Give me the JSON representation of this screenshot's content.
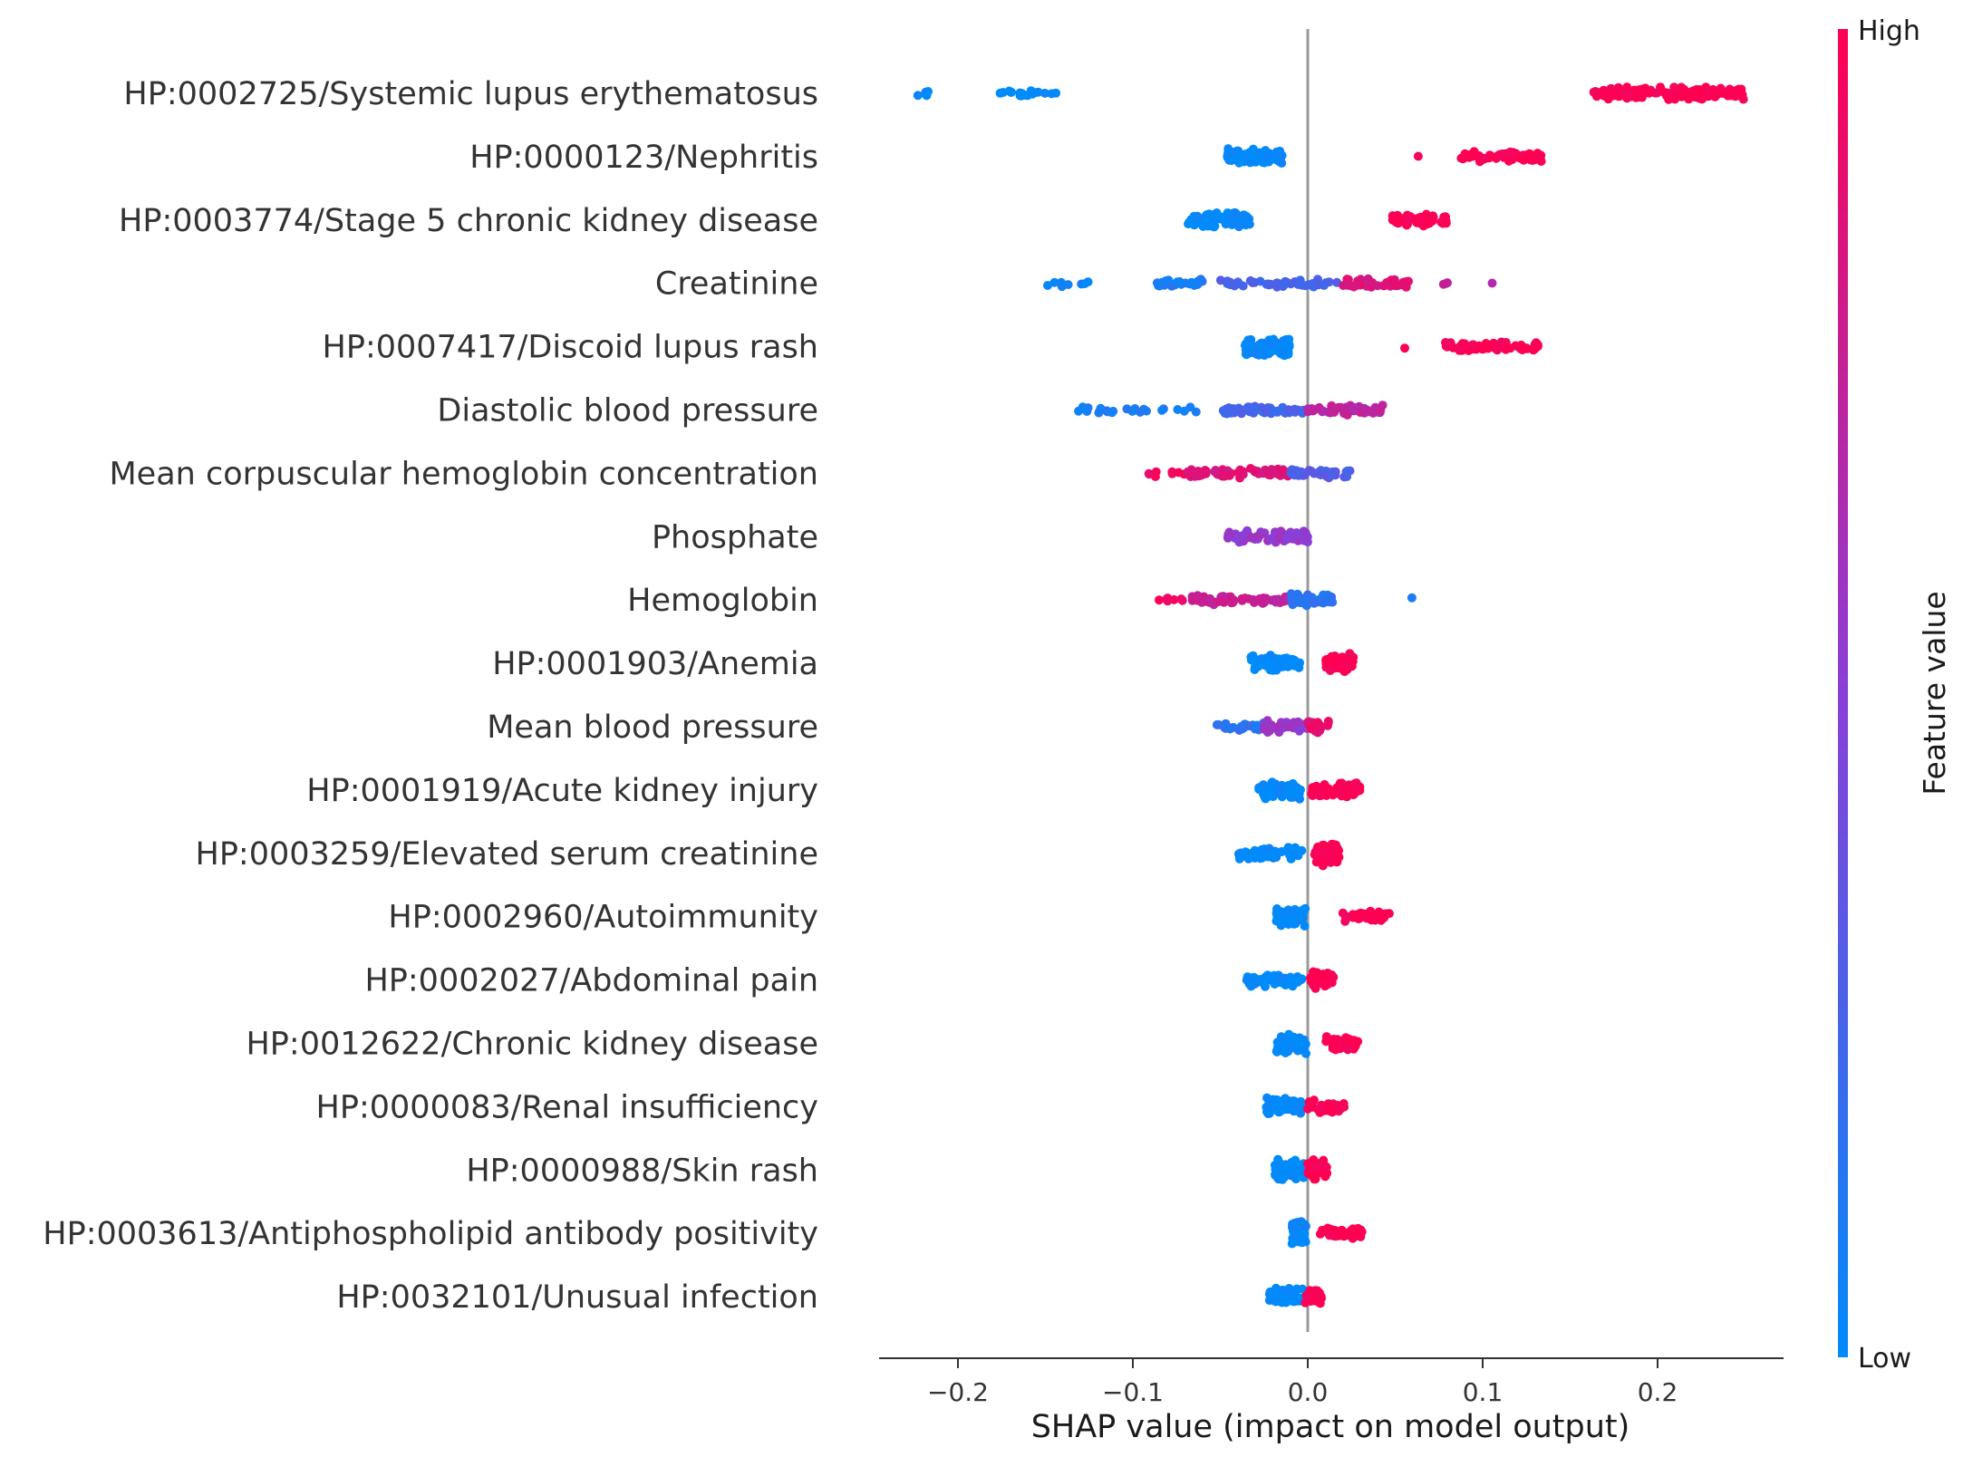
{
  "chart_data": {
    "type": "scatter",
    "subtype": "shap-beeswarm",
    "xlabel": "SHAP value (impact on model output)",
    "xlim": [
      -0.245,
      0.272
    ],
    "xticks": [
      -0.2,
      -0.1,
      0.0,
      0.1,
      0.2
    ],
    "xtick_labels": [
      "−0.2",
      "−0.1",
      "0.0",
      "0.1",
      "0.2"
    ],
    "zero_line": true,
    "colorbar": {
      "title": "Feature value",
      "high_label": "High",
      "low_label": "Low",
      "low_color": "#008bfb",
      "high_color": "#ff0052"
    },
    "features": [
      {
        "name": "HP:0002725/Systemic lupus erythematosus",
        "clusters": [
          {
            "min": -0.225,
            "max": -0.215,
            "n": 5,
            "fv": 0.0
          },
          {
            "min": -0.18,
            "max": -0.143,
            "n": 18,
            "fv": 0.0
          },
          {
            "min": 0.163,
            "max": 0.25,
            "n": 150,
            "fv": 1.0
          }
        ]
      },
      {
        "name": "HP:0000123/Nephritis",
        "clusters": [
          {
            "min": -0.046,
            "max": -0.014,
            "n": 90,
            "fv": 0.0
          },
          {
            "min": 0.063,
            "max": 0.065,
            "n": 1,
            "fv": 1.0
          },
          {
            "min": 0.086,
            "max": 0.135,
            "n": 60,
            "fv": 1.0
          }
        ]
      },
      {
        "name": "HP:0003774/Stage 5 chronic kidney disease",
        "clusters": [
          {
            "min": -0.07,
            "max": -0.033,
            "n": 90,
            "fv": 0.0
          },
          {
            "min": 0.048,
            "max": 0.08,
            "n": 60,
            "fv": 1.0
          }
        ]
      },
      {
        "name": "Creatinine",
        "clusters": [
          {
            "min": -0.153,
            "max": -0.125,
            "n": 8,
            "fv": 0.05
          },
          {
            "min": -0.088,
            "max": -0.06,
            "n": 30,
            "fv": 0.1
          },
          {
            "min": -0.05,
            "max": 0.02,
            "n": 45,
            "fv": 0.25
          },
          {
            "min": 0.02,
            "max": 0.058,
            "n": 40,
            "fv": 0.85
          },
          {
            "min": 0.075,
            "max": 0.112,
            "n": 4,
            "fv": 0.7
          }
        ]
      },
      {
        "name": "HP:0007417/Discoid lupus rash",
        "clusters": [
          {
            "min": -0.036,
            "max": -0.01,
            "n": 90,
            "fv": 0.0
          },
          {
            "min": 0.055,
            "max": 0.057,
            "n": 1,
            "fv": 1.0
          },
          {
            "min": 0.078,
            "max": 0.133,
            "n": 60,
            "fv": 1.0
          }
        ]
      },
      {
        "name": "Diastolic blood pressure",
        "clusters": [
          {
            "min": -0.133,
            "max": -0.06,
            "n": 25,
            "fv": 0.1
          },
          {
            "min": -0.05,
            "max": 0.0,
            "n": 45,
            "fv": 0.25
          },
          {
            "min": 0.0,
            "max": 0.043,
            "n": 50,
            "fv": 0.7
          }
        ]
      },
      {
        "name": "Mean corpuscular hemoglobin concentration",
        "clusters": [
          {
            "min": -0.092,
            "max": -0.07,
            "n": 8,
            "fv": 0.95
          },
          {
            "min": -0.07,
            "max": -0.01,
            "n": 70,
            "fv": 0.85
          },
          {
            "min": -0.01,
            "max": 0.025,
            "n": 40,
            "fv": 0.3
          }
        ]
      },
      {
        "name": "Phosphate",
        "clusters": [
          {
            "min": -0.046,
            "max": 0.0,
            "n": 80,
            "fv": 0.55
          }
        ]
      },
      {
        "name": "Hemoglobin",
        "clusters": [
          {
            "min": -0.085,
            "max": -0.06,
            "n": 8,
            "fv": 0.95
          },
          {
            "min": -0.068,
            "max": -0.01,
            "n": 60,
            "fv": 0.75
          },
          {
            "min": -0.01,
            "max": 0.015,
            "n": 40,
            "fv": 0.15
          },
          {
            "min": 0.058,
            "max": 0.06,
            "n": 1,
            "fv": 0.05
          }
        ]
      },
      {
        "name": "HP:0001903/Anemia",
        "clusters": [
          {
            "min": -0.033,
            "max": -0.004,
            "n": 70,
            "fv": 0.0
          },
          {
            "min": 0.01,
            "max": 0.027,
            "n": 60,
            "fv": 1.0
          }
        ]
      },
      {
        "name": "Mean blood pressure",
        "clusters": [
          {
            "min": -0.052,
            "max": -0.025,
            "n": 25,
            "fv": 0.15
          },
          {
            "min": -0.025,
            "max": 0.0,
            "n": 40,
            "fv": 0.55
          },
          {
            "min": 0.0,
            "max": 0.012,
            "n": 25,
            "fv": 0.9
          }
        ]
      },
      {
        "name": "HP:0001919/Acute kidney injury",
        "clusters": [
          {
            "min": -0.028,
            "max": -0.004,
            "n": 70,
            "fv": 0.0
          },
          {
            "min": 0.002,
            "max": 0.03,
            "n": 60,
            "fv": 1.0
          }
        ]
      },
      {
        "name": "HP:0003259/Elevated serum creatinine",
        "clusters": [
          {
            "min": -0.04,
            "max": -0.003,
            "n": 60,
            "fv": 0.0
          },
          {
            "min": 0.004,
            "max": 0.018,
            "n": 60,
            "fv": 1.0
          }
        ]
      },
      {
        "name": "HP:0002960/Autoimmunity",
        "clusters": [
          {
            "min": -0.018,
            "max": -0.001,
            "n": 60,
            "fv": 0.0
          },
          {
            "min": 0.018,
            "max": 0.047,
            "n": 40,
            "fv": 1.0
          }
        ]
      },
      {
        "name": "HP:0002027/Abdominal pain",
        "clusters": [
          {
            "min": -0.035,
            "max": -0.003,
            "n": 60,
            "fv": 0.0
          },
          {
            "min": 0.0,
            "max": 0.015,
            "n": 40,
            "fv": 1.0
          }
        ]
      },
      {
        "name": "HP:0012622/Chronic kidney disease",
        "clusters": [
          {
            "min": -0.018,
            "max": -0.001,
            "n": 60,
            "fv": 0.0
          },
          {
            "min": 0.009,
            "max": 0.029,
            "n": 40,
            "fv": 1.0
          }
        ]
      },
      {
        "name": "HP:0000083/Renal insufficiency",
        "clusters": [
          {
            "min": -0.024,
            "max": -0.002,
            "n": 60,
            "fv": 0.0
          },
          {
            "min": 0.0,
            "max": 0.021,
            "n": 40,
            "fv": 1.0
          }
        ]
      },
      {
        "name": "HP:0000988/Skin rash",
        "clusters": [
          {
            "min": -0.019,
            "max": -0.002,
            "n": 60,
            "fv": 0.0
          },
          {
            "min": 0.0,
            "max": 0.011,
            "n": 40,
            "fv": 1.0
          }
        ]
      },
      {
        "name": "HP:0003613/Antiphospholipid antibody positivity",
        "clusters": [
          {
            "min": -0.009,
            "max": -0.001,
            "n": 50,
            "fv": 0.0
          },
          {
            "min": 0.005,
            "max": 0.031,
            "n": 40,
            "fv": 1.0
          }
        ]
      },
      {
        "name": "HP:0032101/Unusual infection",
        "clusters": [
          {
            "min": -0.022,
            "max": -0.002,
            "n": 60,
            "fv": 0.0
          },
          {
            "min": -0.002,
            "max": 0.008,
            "n": 30,
            "fv": 1.0
          }
        ]
      }
    ]
  }
}
